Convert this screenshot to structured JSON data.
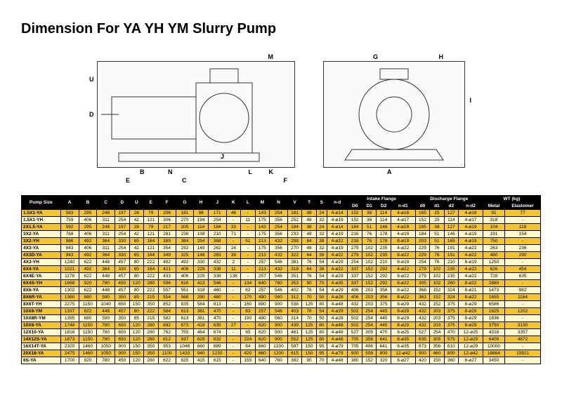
{
  "title": "Dimension For YA YH YM Slurry Pump",
  "diagram_labels": [
    "G",
    "H",
    "M",
    "I",
    "U",
    "D",
    "K",
    "L",
    "J",
    "N",
    "E",
    "B",
    "F",
    "C",
    "A"
  ],
  "group_headers": [
    "Pump Size",
    "A",
    "B",
    "C",
    "D",
    "U",
    "E",
    "F",
    "G",
    "H",
    "J",
    "K",
    "L",
    "M",
    "N",
    "V",
    "T",
    "S",
    "n-d",
    "Intake Flange",
    "Discharge Flange",
    "WT (kg)"
  ],
  "sub_headers": [
    "",
    "",
    "",
    "",
    "",
    "",
    "",
    "",
    "",
    "",
    "",
    "",
    "",
    "",
    "",
    "",
    "",
    "",
    "",
    "D0",
    "D1",
    "D2",
    "n-d1",
    "d0",
    "d1",
    "d2",
    "n-d2",
    "Metal",
    "Elastomer"
  ],
  "rows": [
    [
      "1.5X1-YA",
      "583",
      "295",
      "248",
      "197",
      "28",
      "79",
      "206",
      "181",
      "98",
      "171",
      "46",
      "-",
      "143",
      "254",
      "181",
      "38",
      "24",
      "4-ø14",
      "152",
      "38",
      "114",
      "4-ø16",
      "165",
      "25",
      "127",
      "4-ø16",
      "91",
      "77"
    ],
    [
      "1.5X1-YH",
      "759",
      "406",
      "311",
      "254",
      "42",
      "121",
      "306",
      "270",
      "194",
      "254",
      "-",
      "11",
      "175",
      "356",
      "252",
      "48",
      "32",
      "4-ø19",
      "152",
      "38",
      "114",
      "4-ø17",
      "152",
      "25",
      "114",
      "4-ø17",
      "318",
      "-"
    ],
    [
      "2X1.5-YA",
      "592",
      "295",
      "248",
      "197",
      "28",
      "79",
      "217",
      "205",
      "114",
      "184",
      "33",
      "-",
      "143",
      "254",
      "184",
      "38",
      "24",
      "4-ø14",
      "184",
      "51",
      "146",
      "4-ø19",
      "165",
      "38",
      "127",
      "4-ø19",
      "104",
      "118"
    ],
    [
      "3X2-YA",
      "768",
      "406",
      "311",
      "254",
      "42",
      "121",
      "281",
      "238",
      "138",
      "210",
      "71",
      "-",
      "175",
      "356",
      "233",
      "48",
      "32",
      "4-ø19",
      "216",
      "76",
      "178",
      "4-ø19",
      "184",
      "51",
      "146",
      "4-ø19",
      "191",
      "154"
    ],
    [
      "3X2-YH",
      "986",
      "492",
      "364",
      "330",
      "65",
      "164",
      "389",
      "384",
      "254",
      "368",
      "-",
      "51",
      "213",
      "432",
      "298",
      "64",
      "38",
      "4-ø22",
      "216",
      "76",
      "178",
      "8-ø19",
      "203",
      "51",
      "165",
      "4-ø19",
      "750",
      "-"
    ],
    [
      "4X3-YA",
      "843",
      "406",
      "311",
      "254",
      "42",
      "121",
      "354",
      "292",
      "149",
      "262",
      "24",
      "-",
      "175",
      "356",
      "270",
      "48",
      "32",
      "4-ø19",
      "279",
      "102",
      "235",
      "4-ø22",
      "229",
      "76",
      "191",
      "4-ø22",
      "263",
      "236"
    ],
    [
      "4X3D-YA",
      "943",
      "492",
      "364",
      "330",
      "65",
      "164",
      "349",
      "325",
      "148",
      "283",
      "39",
      "-",
      "213",
      "432",
      "322",
      "64",
      "38",
      "4-ø22",
      "279",
      "102",
      "235",
      "8-ø22",
      "229",
      "76",
      "191",
      "4-ø22",
      "480",
      "290"
    ],
    [
      "4X3-YH",
      "1240",
      "622",
      "448",
      "457",
      "80",
      "222",
      "492",
      "492",
      "330",
      "432",
      "2",
      "-",
      "257",
      "546",
      "381",
      "76",
      "54",
      "4-ø29",
      "254",
      "102",
      "210",
      "8-ø19",
      "254",
      "76",
      "210",
      "8-ø19",
      "1250",
      "-"
    ],
    [
      "6X4-YA",
      "1021",
      "492",
      "364",
      "330",
      "65",
      "164",
      "421",
      "406",
      "229",
      "338",
      "11",
      "-",
      "213",
      "432",
      "318",
      "64",
      "38",
      "4-ø22",
      "337",
      "152",
      "292",
      "4-ø22",
      "279",
      "102",
      "235",
      "4-ø22",
      "626",
      "454"
    ],
    [
      "6X4E-YA",
      "1178",
      "622",
      "448",
      "457",
      "80",
      "222",
      "433",
      "406",
      "229",
      "338",
      "138",
      "-",
      "257",
      "546",
      "351",
      "76",
      "54",
      "4-ø29",
      "337",
      "152",
      "292",
      "8-ø22",
      "279",
      "102",
      "235",
      "4-ø22",
      "728",
      "635"
    ],
    [
      "6X4S-YH",
      "1668",
      "920",
      "780",
      "450",
      "120",
      "280",
      "596",
      "616",
      "413",
      "546",
      "-",
      "134",
      "640",
      "760",
      "353",
      "90",
      "70",
      "4-ø35",
      "337",
      "152",
      "292",
      "8-ø22",
      "305",
      "102",
      "260",
      "8-ø22",
      "2880",
      "-"
    ],
    [
      "8X6-YA",
      "1302",
      "622",
      "448",
      "457",
      "80",
      "222",
      "557",
      "551",
      "318",
      "460",
      "-",
      "62",
      "257",
      "546",
      "402",
      "76",
      "54",
      "4-ø29",
      "406",
      "203",
      "356",
      "8-ø22",
      "368",
      "152",
      "324",
      "8-ø21",
      "1473",
      "982"
    ],
    [
      "8X6R-YA",
      "1360",
      "680",
      "590",
      "350",
      "85",
      "215",
      "554",
      "568",
      "290",
      "460",
      "-",
      "170",
      "490",
      "560",
      "312",
      "70",
      "50",
      "4-ø28",
      "406",
      "203",
      "356",
      "8-ø22",
      "363",
      "152",
      "324",
      "8-ø22",
      "1655",
      "1164"
    ],
    [
      "8X6T-YH",
      "2275",
      "1150",
      "1040",
      "650",
      "150",
      "350",
      "852",
      "835",
      "584",
      "813",
      "-",
      "160",
      "880",
      "900",
      "538",
      "125",
      "80",
      "4-ø48",
      "432",
      "203",
      "375",
      "8-ø29",
      "432",
      "152",
      "375",
      "8-ø29",
      "6586",
      "-"
    ],
    [
      "10X8-YM",
      "1337",
      "622",
      "448",
      "457",
      "80",
      "222",
      "584",
      "613",
      "381",
      "470",
      "-",
      "83",
      "257",
      "546",
      "403",
      "76",
      "54",
      "4-ø29",
      "502",
      "254",
      "445",
      "8-ø29",
      "432",
      "203",
      "375",
      "8-ø29",
      "1625",
      "1202"
    ],
    [
      "10X8R-YM",
      "1395",
      "680",
      "590",
      "350",
      "85",
      "215",
      "582",
      "613",
      "381",
      "470",
      "-",
      "190",
      "490",
      "560",
      "314",
      "70",
      "50",
      "4-ø28",
      "502",
      "254",
      "445",
      "8-ø29",
      "432",
      "203",
      "375",
      "8-ø29",
      "1836",
      "-"
    ],
    [
      "10X8-YA",
      "1748",
      "1150",
      "780",
      "650",
      "120",
      "280",
      "692",
      "673",
      "419",
      "635",
      "27",
      "-",
      "620",
      "900",
      "439",
      "125",
      "80",
      "4-ø48",
      "502",
      "254",
      "445",
      "8-ø29",
      "432",
      "203",
      "375",
      "8-ø29",
      "3750",
      "3130"
    ],
    [
      "12X10-YA",
      "1816",
      "1150",
      "780",
      "650",
      "120",
      "280",
      "762",
      "755",
      "464",
      "674",
      "-",
      "65",
      "620",
      "900",
      "461",
      "125",
      "80",
      "4-ø48",
      "527",
      "305",
      "470",
      "8-ø25",
      "527",
      "254",
      "470",
      "12-ø25",
      "4318",
      "3357"
    ],
    [
      "14X12S-YA",
      "1873",
      "1150",
      "780",
      "650",
      "120",
      "280",
      "812",
      "937",
      "629",
      "832",
      "-",
      "224",
      "620",
      "900",
      "552",
      "125",
      "80",
      "4-ø48",
      "705",
      "356",
      "641",
      "8-ø35",
      "635",
      "305",
      "575",
      "12-ø29",
      "6409",
      "4672"
    ],
    [
      "16X14T-YA",
      "2320",
      "1460",
      "1050",
      "900",
      "150",
      "350",
      "953",
      "1048",
      "660",
      "889",
      "-",
      "84",
      "860",
      "1200",
      "597",
      "150",
      "95",
      "4-ø79",
      "705",
      "406",
      "641",
      "8-ø35",
      "673",
      "356",
      "610",
      "12-ø29",
      "10000",
      "-"
    ],
    [
      "20X18-YA",
      "2475",
      "1460",
      "1050",
      "900",
      "150",
      "350",
      "1100",
      "1420",
      "940",
      "1230",
      "-",
      "420",
      "860",
      "1200",
      "615",
      "150",
      "95",
      "4-ø79",
      "900",
      "508",
      "800",
      "12-ø42",
      "900",
      "460",
      "800",
      "12-ø42",
      "18864",
      "15921"
    ],
    [
      "6S-YA",
      "1700",
      "920",
      "780",
      "450",
      "120",
      "280",
      "622",
      "625",
      "415",
      "615",
      "-",
      "155",
      "640",
      "760",
      "382",
      "90",
      "70",
      "4-ø48",
      "380",
      "152",
      "320",
      "8-ø27",
      "420",
      "150",
      "360",
      "8-ø27",
      "3450",
      "-"
    ]
  ]
}
